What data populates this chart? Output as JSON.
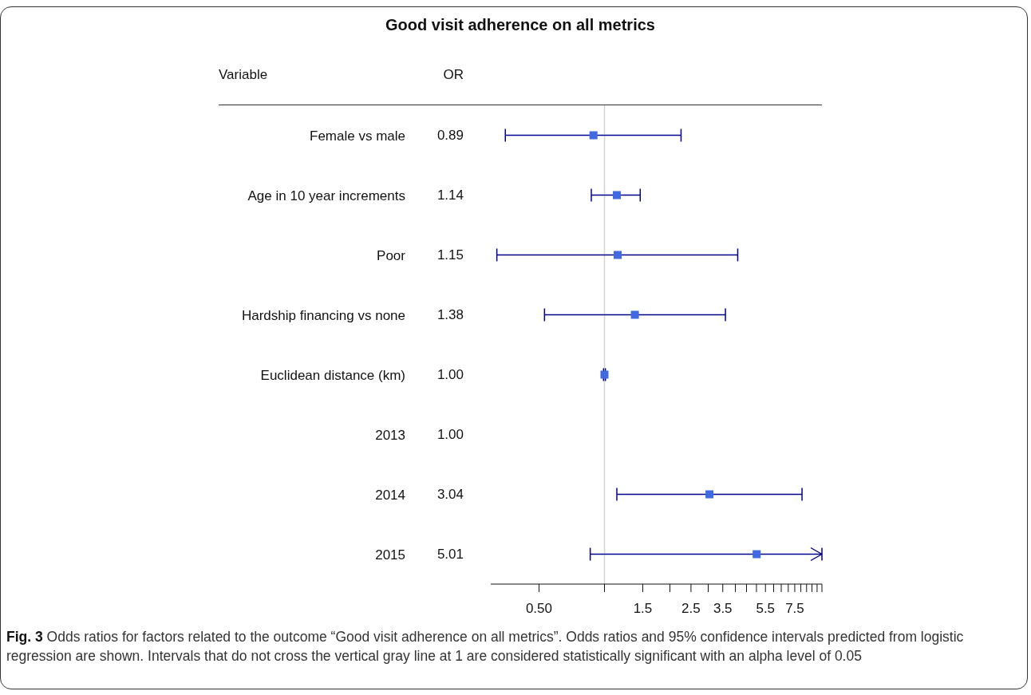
{
  "chart_data": {
    "type": "scatter",
    "orientation": "horizontal",
    "title": "Good visit adherence on all metrics",
    "categories": [
      "Female vs male",
      "Age in 10 year increments",
      "Poor",
      "Hardship financing vs none",
      "Euclidean distance (km)",
      "2013",
      "2014",
      "2015"
    ],
    "values": [
      0.89,
      1.14,
      1.15,
      1.38,
      1.0,
      null,
      3.04,
      5.01
    ],
    "errors": [
      [
        0.35,
        2.25
      ],
      [
        0.87,
        1.46
      ],
      [
        0.32,
        4.1
      ],
      [
        0.53,
        3.6
      ],
      [
        0.99,
        1.01
      ],
      null,
      [
        1.14,
        8.1
      ],
      [
        0.86,
        10
      ]
    ],
    "value_labels": [
      "0.89",
      "1.14",
      "1.15",
      "1.38",
      "1.00",
      "1.00",
      "3.04",
      "5.01"
    ],
    "color": "#4169e1",
    "marker": "square",
    "log": "x",
    "xlim": [
      0.3,
      10
    ],
    "xticks": [
      {
        "value": 0.5,
        "label": "0.50"
      },
      {
        "value": 1,
        "label": null
      },
      1.5,
      {
        "value": 2,
        "label": null
      },
      2.5,
      {
        "value": 3,
        "label": null
      },
      3.5,
      {
        "value": 4,
        "label": null
      },
      {
        "value": 4.5,
        "label": null
      },
      {
        "value": 5,
        "label": null
      },
      5.5,
      {
        "value": 6,
        "label": null
      },
      {
        "value": 6.5,
        "label": null
      },
      {
        "value": 7,
        "label": null
      },
      7.5,
      {
        "value": 8,
        "label": null
      },
      {
        "value": 8.5,
        "label": null
      },
      {
        "value": 9,
        "label": null
      },
      {
        "value": 9.5,
        "label": null
      },
      {
        "value": 10,
        "label": null
      }
    ],
    "ref_lines": [
      {
        "axis": "x",
        "value": 1,
        "color": "#d3d3d3"
      }
    ],
    "annotations": [
      "Variable",
      "OR",
      "Fig. 3",
      "Odds ratios for factors related to the outcome “Good visit adherence on all metrics”. Odds ratios and 95% confidence intervals predicted from logistic regression are shown. Intervals that do not cross the vertical gray line at 1 are considered statistically significant with an alpha level of 0.05"
    ]
  }
}
